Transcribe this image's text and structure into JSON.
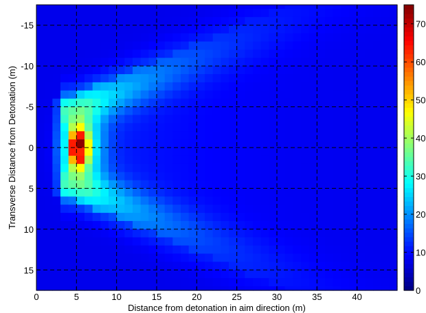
{
  "chart_data": {
    "type": "heatmap",
    "xlabel": "Distance from detonation in aim direction (m)",
    "ylabel": "Transverse Distance from Detonation (m)",
    "x_ticks": [
      0,
      5,
      10,
      15,
      20,
      25,
      30,
      35,
      40
    ],
    "y_ticks": [
      -15,
      -10,
      -5,
      0,
      5,
      10,
      15
    ],
    "xlim": [
      0,
      45
    ],
    "ylim": [
      -17.5,
      17.5
    ],
    "y_reversed": true,
    "cell_size_m": 1,
    "colormap": "jet",
    "colorbar": {
      "min": 0,
      "max": 75,
      "ticks": [
        0,
        10,
        20,
        30,
        40,
        50,
        60,
        70
      ]
    },
    "grid": "dashed",
    "peak": {
      "x": 5,
      "y": 0,
      "value": 74
    },
    "secondary_peak": {
      "x": 5,
      "y": 1,
      "value": 63
    },
    "description_of_field": "Hot spot near x=5 m, y=0; arc-shaped dispersion spreading outward toward larger x with transverse spread that grows with distance"
  }
}
